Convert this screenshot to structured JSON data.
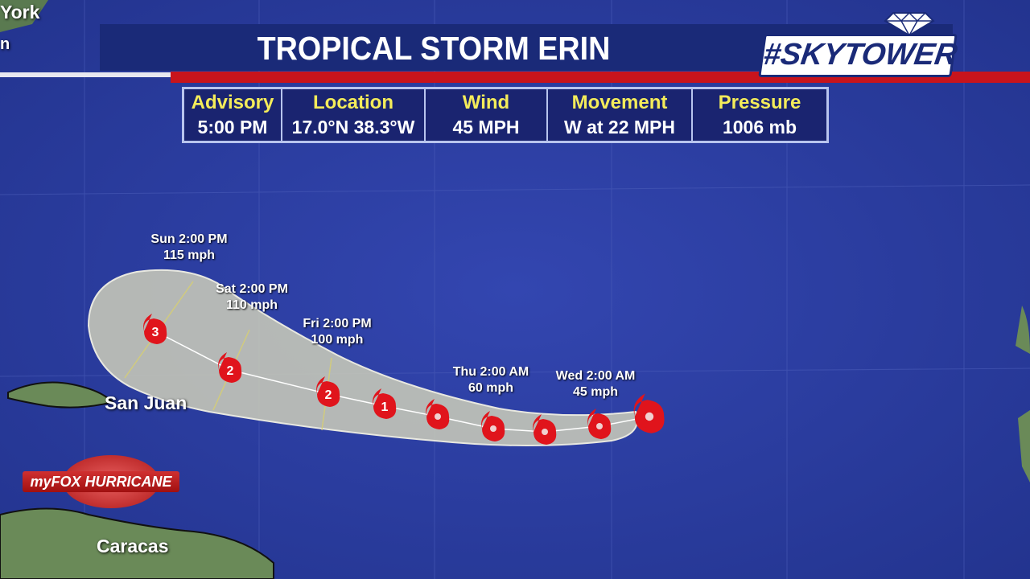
{
  "title": "TROPICAL STORM ERIN",
  "brand": "#SKYTOWER",
  "advisory_table": [
    {
      "header": "Advisory",
      "value": "5:00 PM"
    },
    {
      "header": "Location",
      "value": "17.0°N  38.3°W"
    },
    {
      "header": "Wind",
      "value": "45 MPH"
    },
    {
      "header": "Movement",
      "value": "W at 22 MPH"
    },
    {
      "header": "Pressure",
      "value": "1006 mb"
    }
  ],
  "forecast_labels": [
    {
      "time": "Sun 2:00 PM",
      "wind": "115 mph"
    },
    {
      "time": "Sat 2:00 PM",
      "wind": "110 mph"
    },
    {
      "time": "Fri 2:00 PM",
      "wind": "100 mph"
    },
    {
      "time": "Thu 2:00 AM",
      "wind": "60 mph"
    },
    {
      "time": "Wed 2:00 AM",
      "wind": "45 mph"
    }
  ],
  "storm_points_categories": [
    "",
    "",
    "",
    "",
    "",
    "1",
    "2",
    "2",
    "3"
  ],
  "cities": {
    "york": "York",
    "san_juan": "San Juan",
    "caracas": "Caracas"
  },
  "partial_label_left": "n",
  "logo_text": "myFOX HURRICANE",
  "colors": {
    "ocean": "#2a3c9e",
    "banner": "#1a2a78",
    "accent_red": "#c8141c",
    "header_yellow": "#f4ec5a",
    "storm_icon": "#e0141c",
    "cone": "#c8cab8"
  }
}
